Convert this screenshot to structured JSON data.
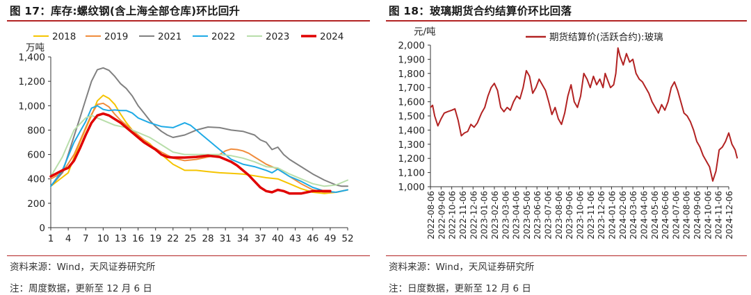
{
  "left": {
    "title": "图 17：库存:螺纹钢(含上海全部仓库)环比回升",
    "source": "资料来源：Wind，天风证券研究所",
    "note": "注：周度数据，更新至 12 月 6 日"
  },
  "right": {
    "title": "图 18：玻璃期货合约结算价环比回落",
    "source": "资料来源：Wind，天风证券研究所",
    "note": "注：日度数据，更新至 12 月 6 日"
  },
  "chart_data": [
    {
      "type": "line",
      "ylabel": "万吨",
      "xlabel": "",
      "xlim": [
        1,
        52
      ],
      "ylim": [
        0,
        1400
      ],
      "x_ticks": [
        1,
        4,
        7,
        10,
        13,
        16,
        19,
        22,
        25,
        28,
        31,
        34,
        37,
        40,
        43,
        46,
        49,
        52
      ],
      "y_ticks": [
        0,
        200,
        400,
        600,
        800,
        1000,
        1200,
        1400
      ],
      "y_tick_labels": [
        "0",
        "200",
        "400",
        "600",
        "800",
        "1,000",
        "1,200",
        "1,400"
      ],
      "legend_position": "top",
      "series": [
        {
          "name": "2018",
          "color": "#f5c400",
          "width": 2,
          "x": [
            1,
            4,
            6,
            8,
            9,
            10,
            11,
            12,
            13,
            14,
            15,
            16,
            17,
            18,
            19,
            20,
            22,
            24,
            26,
            28,
            30,
            32,
            34,
            36,
            38,
            40,
            42,
            44,
            46,
            48,
            50,
            52
          ],
          "y": [
            340,
            450,
            700,
            920,
            1040,
            1085,
            1060,
            1010,
            930,
            860,
            800,
            750,
            720,
            690,
            640,
            600,
            520,
            470,
            470,
            460,
            450,
            445,
            440,
            425,
            410,
            400,
            360,
            320,
            290,
            280,
            290,
            310
          ]
        },
        {
          "name": "2019",
          "color": "#f08c3c",
          "width": 2,
          "x": [
            1,
            3,
            5,
            7,
            8,
            9,
            10,
            11,
            12,
            13,
            14,
            15,
            16,
            17,
            18,
            19,
            20,
            22,
            24,
            26,
            28,
            30,
            31,
            32,
            33,
            34,
            35,
            36,
            38,
            40,
            42,
            44,
            46,
            48,
            50,
            52
          ],
          "y": [
            400,
            450,
            600,
            820,
            930,
            1010,
            1020,
            990,
            930,
            880,
            840,
            800,
            760,
            720,
            680,
            650,
            620,
            570,
            550,
            560,
            580,
            600,
            630,
            645,
            640,
            630,
            610,
            580,
            520,
            480,
            420,
            360,
            310,
            290,
            290,
            310
          ]
        },
        {
          "name": "2021",
          "color": "#808080",
          "width": 2,
          "x": [
            1,
            3,
            5,
            6,
            7,
            8,
            9,
            10,
            11,
            12,
            13,
            14,
            15,
            16,
            17,
            18,
            19,
            20,
            21,
            22,
            24,
            26,
            28,
            30,
            32,
            34,
            36,
            37,
            38,
            39,
            40,
            41,
            42,
            44,
            46,
            48,
            50,
            51,
            52
          ],
          "y": [
            340,
            450,
            750,
            900,
            1050,
            1200,
            1295,
            1310,
            1290,
            1240,
            1180,
            1140,
            1080,
            1000,
            940,
            880,
            830,
            790,
            760,
            740,
            760,
            800,
            825,
            820,
            800,
            790,
            760,
            720,
            700,
            640,
            660,
            600,
            560,
            500,
            440,
            390,
            350,
            340,
            340
          ]
        },
        {
          "name": "2022",
          "color": "#1eaae6",
          "width": 2,
          "x": [
            1,
            3,
            5,
            7,
            8,
            9,
            10,
            11,
            12,
            13,
            14,
            15,
            16,
            18,
            20,
            22,
            23,
            24,
            25,
            26,
            27,
            28,
            30,
            32,
            34,
            36,
            38,
            39,
            40,
            41,
            42,
            44,
            46,
            48,
            50,
            52
          ],
          "y": [
            340,
            470,
            700,
            870,
            980,
            1000,
            970,
            960,
            965,
            960,
            960,
            940,
            900,
            860,
            830,
            820,
            840,
            860,
            840,
            800,
            760,
            720,
            640,
            560,
            520,
            500,
            470,
            450,
            480,
            450,
            420,
            380,
            330,
            300,
            290,
            310
          ]
        },
        {
          "name": "2023",
          "color": "#b8deaa",
          "width": 2,
          "x": [
            1,
            3,
            5,
            7,
            8,
            9,
            10,
            11,
            12,
            13,
            14,
            15,
            16,
            17,
            18,
            19,
            20,
            22,
            24,
            26,
            28,
            30,
            32,
            34,
            36,
            38,
            40,
            42,
            44,
            46,
            48,
            50,
            52
          ],
          "y": [
            420,
            580,
            800,
            900,
            920,
            900,
            880,
            860,
            840,
            830,
            820,
            800,
            780,
            760,
            740,
            710,
            680,
            620,
            600,
            600,
            600,
            600,
            590,
            570,
            540,
            500,
            490,
            440,
            400,
            360,
            340,
            350,
            390
          ]
        },
        {
          "name": "2024",
          "color": "#e00000",
          "width": 3.5,
          "x": [
            1,
            3,
            4,
            5,
            6,
            7,
            8,
            9,
            10,
            11,
            12,
            13,
            14,
            15,
            16,
            17,
            18,
            19,
            20,
            21,
            22,
            24,
            26,
            28,
            30,
            31,
            32,
            33,
            34,
            35,
            36,
            37,
            38,
            39,
            40,
            41,
            42,
            43,
            44,
            45,
            46,
            47,
            48,
            49
          ],
          "y": [
            420,
            470,
            490,
            550,
            650,
            760,
            860,
            920,
            935,
            920,
            890,
            860,
            820,
            780,
            740,
            700,
            670,
            640,
            600,
            580,
            575,
            575,
            580,
            590,
            580,
            560,
            540,
            510,
            470,
            430,
            380,
            330,
            300,
            290,
            310,
            300,
            280,
            280,
            280,
            290,
            300,
            300,
            300,
            300
          ]
        }
      ]
    },
    {
      "type": "line",
      "ylabel": "元/吨",
      "xlabel": "",
      "ylim": [
        1000,
        2000
      ],
      "y_ticks": [
        1000,
        1100,
        1200,
        1300,
        1400,
        1500,
        1600,
        1700,
        1800,
        1900,
        2000
      ],
      "y_tick_labels": [
        "1,000",
        "1,100",
        "1,200",
        "1,300",
        "1,400",
        "1,500",
        "1,600",
        "1,700",
        "1,800",
        "1,900",
        "2,000"
      ],
      "x_tick_labels": [
        "2022-08-06",
        "2022-09-06",
        "2022-10-06",
        "2022-11-06",
        "2022-12-06",
        "2023-01-06",
        "2023-02-06",
        "2023-03-06",
        "2023-04-06",
        "2023-05-06",
        "2023-06-06",
        "2023-07-06",
        "2023-08-06",
        "2023-09-06",
        "2023-10-06",
        "2023-11-06",
        "2023-12-06",
        "2024-01-06",
        "2024-02-06",
        "2024-03-06",
        "2024-04-06",
        "2024-05-06",
        "2024-06-06",
        "2024-07-06",
        "2024-08-06",
        "2024-09-06",
        "2024-10-06",
        "2024-11-06",
        "2024-12-06"
      ],
      "legend_position": "top",
      "series": [
        {
          "name": "期货结算价(活跃合约):玻璃",
          "color": "#b22222",
          "width": 2,
          "x": [
            0,
            0.2,
            0.4,
            0.7,
            1.0,
            1.3,
            1.6,
            2.0,
            2.3,
            2.6,
            2.9,
            3.2,
            3.5,
            3.8,
            4.1,
            4.4,
            4.8,
            5.1,
            5.4,
            5.7,
            6.0,
            6.3,
            6.6,
            6.9,
            7.2,
            7.5,
            7.8,
            8.1,
            8.4,
            8.7,
            9.0,
            9.3,
            9.6,
            9.9,
            10.2,
            10.5,
            10.8,
            11.1,
            11.4,
            11.7,
            12.0,
            12.3,
            12.6,
            12.9,
            13.2,
            13.5,
            13.8,
            14.1,
            14.4,
            14.7,
            15.0,
            15.3,
            15.6,
            15.9,
            16.2,
            16.4,
            16.6,
            16.9,
            17.2,
            17.4,
            17.6,
            17.8,
            18.1,
            18.4,
            18.7,
            19.0,
            19.3,
            19.6,
            19.9,
            20.2,
            20.5,
            20.8,
            21.1,
            21.4,
            21.7,
            22.0,
            22.3,
            22.6,
            22.9,
            23.2,
            23.5,
            23.8,
            24.1,
            24.4,
            24.7,
            25.0,
            25.3,
            25.6,
            25.9,
            26.2,
            26.5,
            26.8,
            27.1,
            27.4,
            27.7,
            28.0,
            28.3,
            28.6,
            28.8
          ],
          "y": [
            1560,
            1575,
            1500,
            1430,
            1480,
            1520,
            1530,
            1540,
            1550,
            1470,
            1360,
            1380,
            1390,
            1440,
            1420,
            1450,
            1520,
            1560,
            1640,
            1700,
            1730,
            1680,
            1560,
            1530,
            1560,
            1540,
            1600,
            1640,
            1620,
            1700,
            1820,
            1780,
            1660,
            1700,
            1760,
            1720,
            1680,
            1600,
            1510,
            1560,
            1480,
            1440,
            1520,
            1640,
            1720,
            1600,
            1560,
            1640,
            1800,
            1760,
            1700,
            1780,
            1720,
            1760,
            1700,
            1800,
            1760,
            1700,
            1720,
            1800,
            1980,
            1920,
            1860,
            1940,
            1880,
            1900,
            1800,
            1760,
            1740,
            1700,
            1660,
            1600,
            1560,
            1520,
            1580,
            1540,
            1600,
            1700,
            1740,
            1680,
            1600,
            1520,
            1500,
            1460,
            1400,
            1320,
            1280,
            1220,
            1180,
            1140,
            1040,
            1110,
            1260,
            1280,
            1320,
            1380,
            1300,
            1260,
            1200
          ]
        }
      ]
    }
  ]
}
